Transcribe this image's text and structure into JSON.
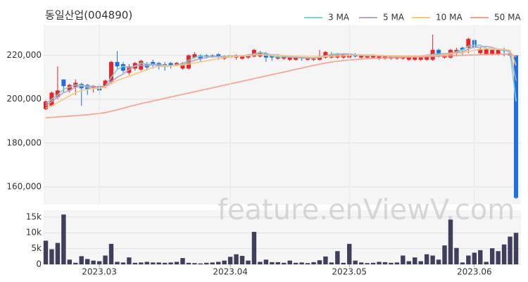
{
  "chart_data": [
    {
      "type": "candlestick",
      "title": "동일산업(004890)",
      "watermark": "feature.enViewV.com",
      "up_color": "#e8242b",
      "down_color": "#1f6fe0",
      "open": [
        195500,
        197000,
        201000,
        209000,
        204000,
        205500,
        207000,
        206500,
        205000,
        206000,
        206000,
        208000,
        217000,
        216000,
        212000,
        214000,
        213500,
        216000,
        217000,
        216500,
        216000,
        216500,
        215500,
        214000,
        214000,
        219000,
        220000,
        220000,
        220000,
        220500,
        218500,
        219000,
        219000,
        218500,
        219000,
        219500,
        219500,
        221000,
        220000,
        218500,
        218500,
        218000,
        218000,
        219000,
        218000,
        218000,
        218000,
        219000,
        219000,
        219000,
        219000,
        219000,
        220500,
        219000,
        219000,
        219000,
        218500,
        218500,
        218500,
        218500,
        218500,
        218000,
        218000,
        218000,
        218000,
        218000,
        222500,
        219000,
        219000,
        221000,
        223500,
        223500,
        227000,
        221000,
        220500,
        220500,
        220500,
        222500,
        221000,
        220000
      ],
      "high": [
        199500,
        203500,
        215000,
        209000,
        207000,
        209000,
        207500,
        207000,
        206500,
        207000,
        209000,
        217500,
        222000,
        217000,
        216000,
        217000,
        218000,
        217000,
        218000,
        217000,
        217000,
        217000,
        217000,
        217000,
        220500,
        221500,
        220500,
        220500,
        220500,
        221000,
        220000,
        220500,
        220500,
        220000,
        220500,
        223000,
        222000,
        221500,
        220500,
        220000,
        220000,
        219500,
        219500,
        219500,
        219500,
        219000,
        222500,
        222000,
        221500,
        221000,
        221000,
        221000,
        221000,
        220500,
        220500,
        220500,
        220000,
        220000,
        220000,
        220000,
        220000,
        220000,
        220000,
        220000,
        220000,
        229500,
        223000,
        220500,
        223000,
        223500,
        224000,
        228000,
        227500,
        223500,
        223500,
        223000,
        223000,
        223500,
        221500,
        220000
      ],
      "low": [
        195000,
        196500,
        200000,
        203000,
        203000,
        202000,
        197000,
        202000,
        203000,
        202000,
        205000,
        207000,
        214000,
        212000,
        211000,
        213000,
        213000,
        213000,
        214000,
        213500,
        213000,
        214000,
        215000,
        213500,
        213500,
        218500,
        217000,
        218500,
        219000,
        218000,
        218000,
        218500,
        218000,
        218000,
        218500,
        219000,
        219000,
        217000,
        217500,
        218000,
        218000,
        217500,
        217500,
        217500,
        217500,
        217500,
        217500,
        218500,
        218500,
        218500,
        218500,
        218500,
        219000,
        218500,
        218500,
        218500,
        218000,
        218000,
        218000,
        218000,
        218000,
        217500,
        217500,
        217500,
        217500,
        217500,
        219000,
        218500,
        218500,
        219500,
        220000,
        221000,
        219500,
        220000,
        220000,
        220000,
        220000,
        219500,
        219000,
        154500
      ],
      "close": [
        199000,
        203000,
        204000,
        206000,
        206500,
        207500,
        205000,
        204500,
        206000,
        204000,
        208500,
        217000,
        215000,
        213000,
        215000,
        216500,
        217500,
        214500,
        215500,
        215000,
        215000,
        215500,
        216500,
        216500,
        220000,
        220500,
        218500,
        219500,
        219500,
        219500,
        219500,
        220000,
        220000,
        219500,
        220000,
        222500,
        221500,
        219000,
        219000,
        219500,
        219500,
        219000,
        219000,
        218500,
        219000,
        218500,
        219500,
        221500,
        220500,
        220500,
        220500,
        220500,
        219500,
        220000,
        220000,
        220000,
        219500,
        219500,
        219500,
        219500,
        219500,
        219500,
        219500,
        219500,
        219500,
        222500,
        220000,
        220000,
        222500,
        222500,
        222500,
        227500,
        223500,
        223000,
        223000,
        222500,
        222500,
        222000,
        220000,
        155000
      ],
      "series": [
        {
          "name": "3 MA",
          "color": "#7fd1c9",
          "values": [
            198000,
            200000,
            202000,
            204500,
            205500,
            206500,
            206500,
            205500,
            205000,
            205000,
            206000,
            210000,
            213500,
            215000,
            214500,
            215000,
            216500,
            216000,
            216000,
            215000,
            215000,
            215200,
            215700,
            216200,
            217700,
            219000,
            219700,
            219500,
            219200,
            219500,
            219500,
            219700,
            219800,
            219800,
            219800,
            220700,
            221300,
            221000,
            219800,
            219200,
            219300,
            219300,
            219200,
            218800,
            218800,
            218700,
            219000,
            219800,
            220500,
            220800,
            220500,
            220500,
            220200,
            220000,
            219800,
            220000,
            219800,
            219700,
            219500,
            219500,
            219500,
            219500,
            219500,
            219500,
            219500,
            220500,
            220700,
            220800,
            220800,
            221700,
            222500,
            224200,
            224500,
            224700,
            223200,
            222800,
            222700,
            222300,
            221500,
            199000
          ]
        },
        {
          "name": "5 MA",
          "color": "#b9a3c9",
          "values": [
            197000,
            199000,
            201000,
            203000,
            204000,
            205500,
            206000,
            206000,
            205800,
            205500,
            206000,
            208000,
            210000,
            211500,
            213500,
            215300,
            215500,
            215300,
            215800,
            215800,
            215500,
            215200,
            215500,
            215800,
            216700,
            217800,
            218400,
            219000,
            219600,
            219500,
            219300,
            219600,
            219700,
            219700,
            220200,
            220700,
            220500,
            220400,
            220300,
            220300,
            219600,
            219200,
            219100,
            219000,
            218800,
            218900,
            219300,
            219800,
            220000,
            220300,
            220700,
            220700,
            220300,
            220200,
            220100,
            220000,
            219800,
            219800,
            219700,
            219600,
            219500,
            219500,
            219500,
            219500,
            220100,
            220200,
            220400,
            220600,
            221100,
            221500,
            221500,
            223000,
            223700,
            223800,
            224100,
            223600,
            222700,
            222500,
            221800,
            208400
          ]
        },
        {
          "name": "10 MA",
          "color": "#f5c97c",
          "values": [
            196000,
            197000,
            198500,
            200000,
            201500,
            203000,
            204000,
            204500,
            205000,
            205000,
            205500,
            207000,
            208500,
            209500,
            210500,
            211500,
            212500,
            213500,
            214500,
            215000,
            215300,
            215300,
            215400,
            215600,
            216000,
            216500,
            217000,
            217500,
            218000,
            218500,
            219000,
            219300,
            219500,
            219700,
            219900,
            220100,
            220200,
            220100,
            220000,
            220000,
            219900,
            219700,
            219600,
            219500,
            219400,
            219300,
            219400,
            219500,
            219600,
            219700,
            219800,
            220000,
            220100,
            220200,
            220200,
            220100,
            220000,
            219900,
            219800,
            219800,
            219700,
            219600,
            219600,
            219600,
            219800,
            219900,
            220000,
            220300,
            220600,
            220900,
            221200,
            221800,
            222300,
            222700,
            223000,
            223000,
            222900,
            222700,
            222400,
            215500
          ]
        },
        {
          "name": "50 MA",
          "color": "#f4a08c",
          "values": [
            191500,
            191700,
            191900,
            192100,
            192300,
            192500,
            192700,
            192900,
            193200,
            193500,
            193900,
            194500,
            195200,
            195900,
            196600,
            197300,
            198000,
            198600,
            199200,
            199800,
            200400,
            201000,
            201600,
            202200,
            202800,
            203400,
            204000,
            204600,
            205200,
            205800,
            206400,
            207000,
            207600,
            208200,
            208800,
            209400,
            210000,
            210600,
            211200,
            211800,
            212400,
            213000,
            213600,
            214200,
            214800,
            215400,
            216000,
            216500,
            217000,
            217300,
            217600,
            217900,
            218100,
            218300,
            218500,
            218600,
            218700,
            218800,
            218900,
            219000,
            219100,
            219200,
            219200,
            219300,
            219400,
            219500,
            219600,
            219700,
            219800,
            219900,
            220000,
            220100,
            220200,
            220300,
            220400,
            220500,
            220500,
            220600,
            220600,
            219400
          ]
        }
      ],
      "ylim": [
        152000,
        234000
      ],
      "yticks": [
        {
          "value": 160000,
          "label": "160,000"
        },
        {
          "value": 180000,
          "label": "180,000"
        },
        {
          "value": 200000,
          "label": "200,000"
        },
        {
          "value": 220000,
          "label": "220,000"
        }
      ],
      "grid": true,
      "legend": "top-right"
    },
    {
      "type": "bar",
      "color": "#3f3f5c",
      "categories": [
        null,
        null,
        null,
        null,
        null,
        null,
        null,
        null,
        null,
        "2023.03",
        null,
        null,
        null,
        null,
        null,
        null,
        null,
        null,
        null,
        null,
        null,
        null,
        null,
        null,
        null,
        null,
        null,
        null,
        null,
        null,
        null,
        "2023.04",
        null,
        null,
        null,
        null,
        null,
        null,
        null,
        null,
        null,
        null,
        null,
        null,
        null,
        null,
        null,
        null,
        null,
        null,
        null,
        "2023.05",
        null,
        null,
        null,
        null,
        null,
        null,
        null,
        null,
        null,
        null,
        null,
        null,
        null,
        null,
        null,
        null,
        null,
        null,
        null,
        null,
        "2023.06",
        null,
        null,
        null,
        null,
        null,
        null,
        null
      ],
      "values": [
        7500,
        4800,
        6800,
        15800,
        1500,
        500,
        2600,
        1700,
        1200,
        1000,
        2800,
        6500,
        800,
        600,
        2200,
        500,
        600,
        800,
        600,
        600,
        500,
        600,
        800,
        2000,
        500,
        400,
        300,
        500,
        600,
        800,
        1200,
        2400,
        3200,
        2700,
        1200,
        10300,
        800,
        1500,
        700,
        700,
        500,
        1200,
        500,
        600,
        400,
        700,
        1300,
        2500,
        600,
        4200,
        500,
        6500,
        1200,
        600,
        400,
        500,
        800,
        700,
        500,
        600,
        2800,
        1000,
        2200,
        1000,
        3200,
        2800,
        1500,
        6000,
        14200,
        5200,
        600,
        2800,
        3700,
        4500,
        800,
        5100,
        4200,
        6300,
        8800,
        10000
      ],
      "ylim": [
        0,
        17200
      ],
      "yticks": [
        0,
        {
          "value": 5000,
          "label": "5k"
        },
        {
          "value": 10000,
          "label": "10k"
        },
        {
          "value": 15000,
          "label": "15k"
        }
      ],
      "grid": true
    }
  ]
}
